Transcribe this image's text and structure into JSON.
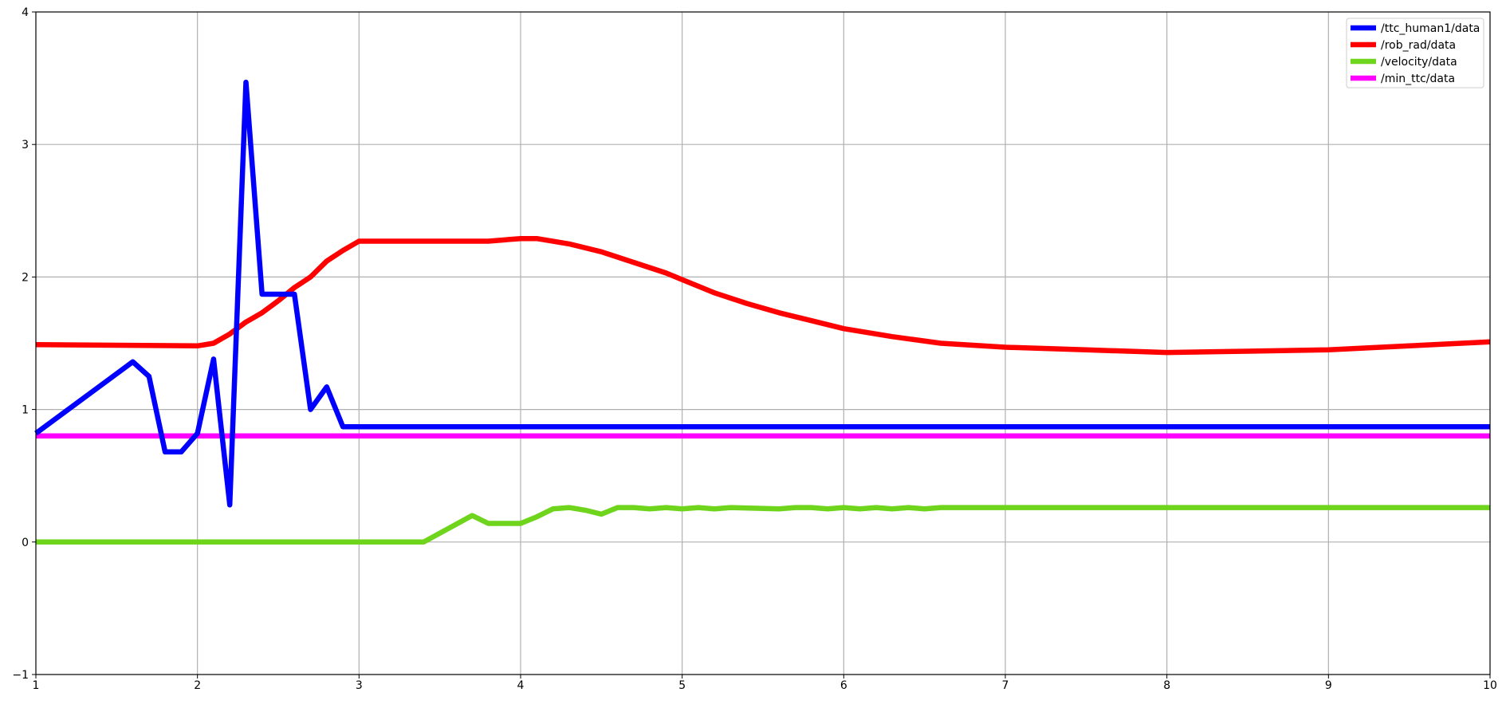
{
  "chart_data": {
    "type": "line",
    "title": "",
    "xlabel": "",
    "ylabel": "",
    "xlim": [
      1,
      10
    ],
    "ylim": [
      -1,
      4
    ],
    "xticks": [
      1,
      2,
      3,
      4,
      5,
      6,
      7,
      8,
      9,
      10
    ],
    "yticks": [
      -1,
      0,
      1,
      2,
      3,
      4
    ],
    "grid": true,
    "legend_position": "top-right",
    "series": [
      {
        "name": "/ttc_human1/data",
        "color": "#0000ff",
        "x": [
          1.0,
          1.6,
          1.7,
          1.8,
          1.9,
          2.0,
          2.1,
          2.2,
          2.3,
          2.4,
          2.5,
          2.6,
          2.7,
          2.8,
          2.9,
          3.0,
          4.0,
          5.0,
          6.0,
          7.0,
          8.0,
          9.0,
          10.0
        ],
        "values": [
          0.82,
          1.36,
          1.25,
          0.68,
          0.68,
          0.82,
          1.38,
          0.28,
          3.47,
          1.87,
          1.87,
          1.87,
          1.0,
          1.17,
          0.87,
          0.87,
          0.87,
          0.87,
          0.87,
          0.87,
          0.87,
          0.87,
          0.87
        ]
      },
      {
        "name": "/rob_rad/data",
        "color": "#ff0000",
        "x": [
          1.0,
          1.5,
          2.0,
          2.1,
          2.2,
          2.3,
          2.4,
          2.5,
          2.6,
          2.7,
          2.8,
          2.9,
          3.0,
          3.2,
          3.5,
          3.8,
          4.0,
          4.1,
          4.3,
          4.5,
          4.7,
          4.9,
          5.0,
          5.2,
          5.4,
          5.6,
          5.8,
          6.0,
          6.3,
          6.6,
          7.0,
          7.5,
          8.0,
          8.5,
          9.0,
          9.5,
          10.0
        ],
        "values": [
          1.49,
          1.485,
          1.48,
          1.5,
          1.57,
          1.66,
          1.73,
          1.82,
          1.92,
          2.0,
          2.12,
          2.2,
          2.27,
          2.27,
          2.27,
          2.27,
          2.29,
          2.29,
          2.25,
          2.19,
          2.11,
          2.03,
          1.98,
          1.88,
          1.8,
          1.73,
          1.67,
          1.61,
          1.55,
          1.5,
          1.47,
          1.45,
          1.43,
          1.44,
          1.45,
          1.48,
          1.51
        ]
      },
      {
        "name": "/velocity/data",
        "color": "#6ed41c",
        "x": [
          1.0,
          3.4,
          3.7,
          3.8,
          4.0,
          4.1,
          4.2,
          4.3,
          4.4,
          4.5,
          4.6,
          4.7,
          4.8,
          4.9,
          5.0,
          5.1,
          5.2,
          5.3,
          5.6,
          5.7,
          5.8,
          5.9,
          6.0,
          6.1,
          6.2,
          6.3,
          6.4,
          6.5,
          6.6,
          10.0
        ],
        "values": [
          0.0,
          0.0,
          0.2,
          0.14,
          0.14,
          0.19,
          0.25,
          0.26,
          0.24,
          0.21,
          0.26,
          0.26,
          0.25,
          0.26,
          0.25,
          0.26,
          0.25,
          0.26,
          0.25,
          0.26,
          0.26,
          0.25,
          0.26,
          0.25,
          0.26,
          0.25,
          0.26,
          0.25,
          0.26,
          0.26
        ]
      },
      {
        "name": "/min_ttc/data",
        "color": "#ff00ff",
        "x": [
          1.0,
          10.0
        ],
        "values": [
          0.8,
          0.8
        ]
      }
    ]
  }
}
